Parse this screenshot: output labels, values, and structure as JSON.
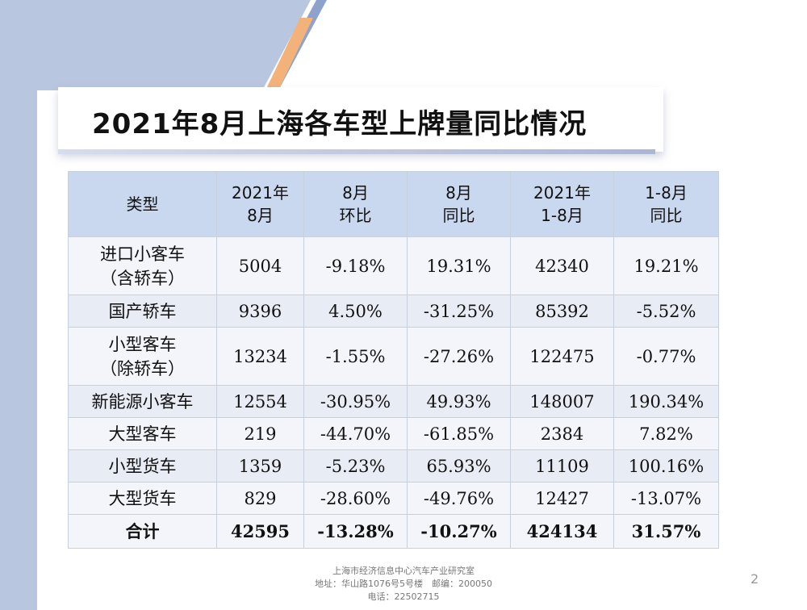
{
  "slide": {
    "title": "2021年8月上海各车型上牌量同比情况",
    "page_number": "2"
  },
  "table": {
    "headers": [
      [
        "类型"
      ],
      [
        "2021年",
        "8月"
      ],
      [
        "8月",
        "环比"
      ],
      [
        "8月",
        "同比"
      ],
      [
        "2021年",
        "1-8月"
      ],
      [
        "1-8月",
        "同比"
      ]
    ],
    "rows": [
      {
        "type": [
          "进口小客车",
          "（含轿车）"
        ],
        "values": [
          "5004",
          "-9.18%",
          "19.31%",
          "42340",
          "19.21%"
        ]
      },
      {
        "type": [
          "国产轿车"
        ],
        "values": [
          "9396",
          "4.50%",
          "-31.25%",
          "85392",
          "-5.52%"
        ]
      },
      {
        "type": [
          "小型客车",
          "（除轿车）"
        ],
        "values": [
          "13234",
          "-1.55%",
          "-27.26%",
          "122475",
          "-0.77%"
        ]
      },
      {
        "type": [
          "新能源小客车"
        ],
        "values": [
          "12554",
          "-30.95%",
          "49.93%",
          "148007",
          "190.34%"
        ]
      },
      {
        "type": [
          "大型客车"
        ],
        "values": [
          "219",
          "-44.70%",
          "-61.85%",
          "2384",
          "7.82%"
        ]
      },
      {
        "type": [
          "小型货车"
        ],
        "values": [
          "1359",
          "-5.23%",
          "65.93%",
          "11109",
          "100.16%"
        ]
      },
      {
        "type": [
          "大型货车"
        ],
        "values": [
          "829",
          "-28.60%",
          "-49.76%",
          "12427",
          "-13.07%"
        ]
      }
    ],
    "total": {
      "type": [
        "合计"
      ],
      "values": [
        "42595",
        "-13.28%",
        "-10.27%",
        "424134",
        "31.57%"
      ]
    }
  },
  "footer": {
    "line1": "上海市经济信息中心汽车产业研究室",
    "line2": "地址：华山路1076号5号楼　邮编：200050",
    "line3": "电话：22502715"
  }
}
